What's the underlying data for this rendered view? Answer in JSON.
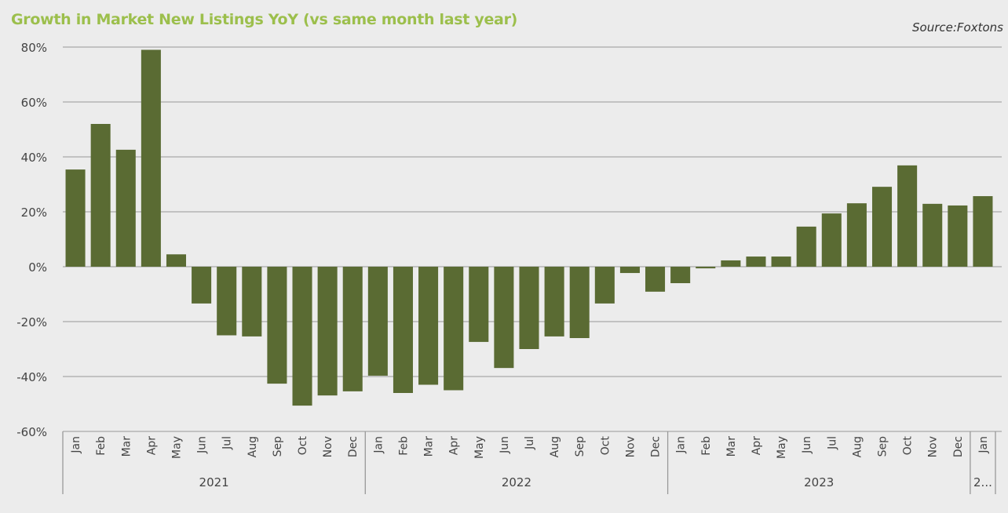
{
  "chart_data": {
    "type": "bar",
    "title": "Growth in Market New Listings YoY (vs same month last year)",
    "source": "Source:Foxtons",
    "xlabel": "",
    "ylabel": "",
    "ylim": [
      -60,
      80
    ],
    "yticks": [
      80,
      60,
      40,
      20,
      0,
      -20,
      -40,
      -60
    ],
    "ytick_labels": [
      "80%",
      "60%",
      "40%",
      "20%",
      "0%",
      "-20%",
      "-40%",
      "-60%"
    ],
    "grid": true,
    "groups": [
      {
        "label": "2021",
        "count": 12
      },
      {
        "label": "2022",
        "count": 12
      },
      {
        "label": "2023",
        "count": 12
      },
      {
        "label": "2...",
        "count": 1
      }
    ],
    "categories": [
      "Jan",
      "Feb",
      "Mar",
      "Apr",
      "May",
      "Jun",
      "Jul",
      "Aug",
      "Sep",
      "Oct",
      "Nov",
      "Dec",
      "Jan",
      "Feb",
      "Mar",
      "Apr",
      "May",
      "Jun",
      "Jul",
      "Aug",
      "Sep",
      "Oct",
      "Nov",
      "Dec",
      "Jan",
      "Feb",
      "Mar",
      "Apr",
      "May",
      "Jun",
      "Jul",
      "Aug",
      "Sep",
      "Oct",
      "Nov",
      "Dec",
      "Jan"
    ],
    "values": [
      35.4,
      52,
      42.6,
      79,
      4.5,
      -13.4,
      -25,
      -25.4,
      -42.6,
      -50.6,
      -46.9,
      -45.4,
      -39.7,
      -46,
      -43,
      -45,
      -27.4,
      -36.9,
      -30,
      -25.4,
      -26,
      -13.4,
      -2.3,
      -9.1,
      -6,
      -0.6,
      2.3,
      3.7,
      3.7,
      14.6,
      19.4,
      23.1,
      29.1,
      36.9,
      22.9,
      22.3,
      25.7
    ],
    "colors": {
      "bar": "#5a6b33",
      "title": "#9cbf4c",
      "grid": "#a8a8a8"
    }
  }
}
